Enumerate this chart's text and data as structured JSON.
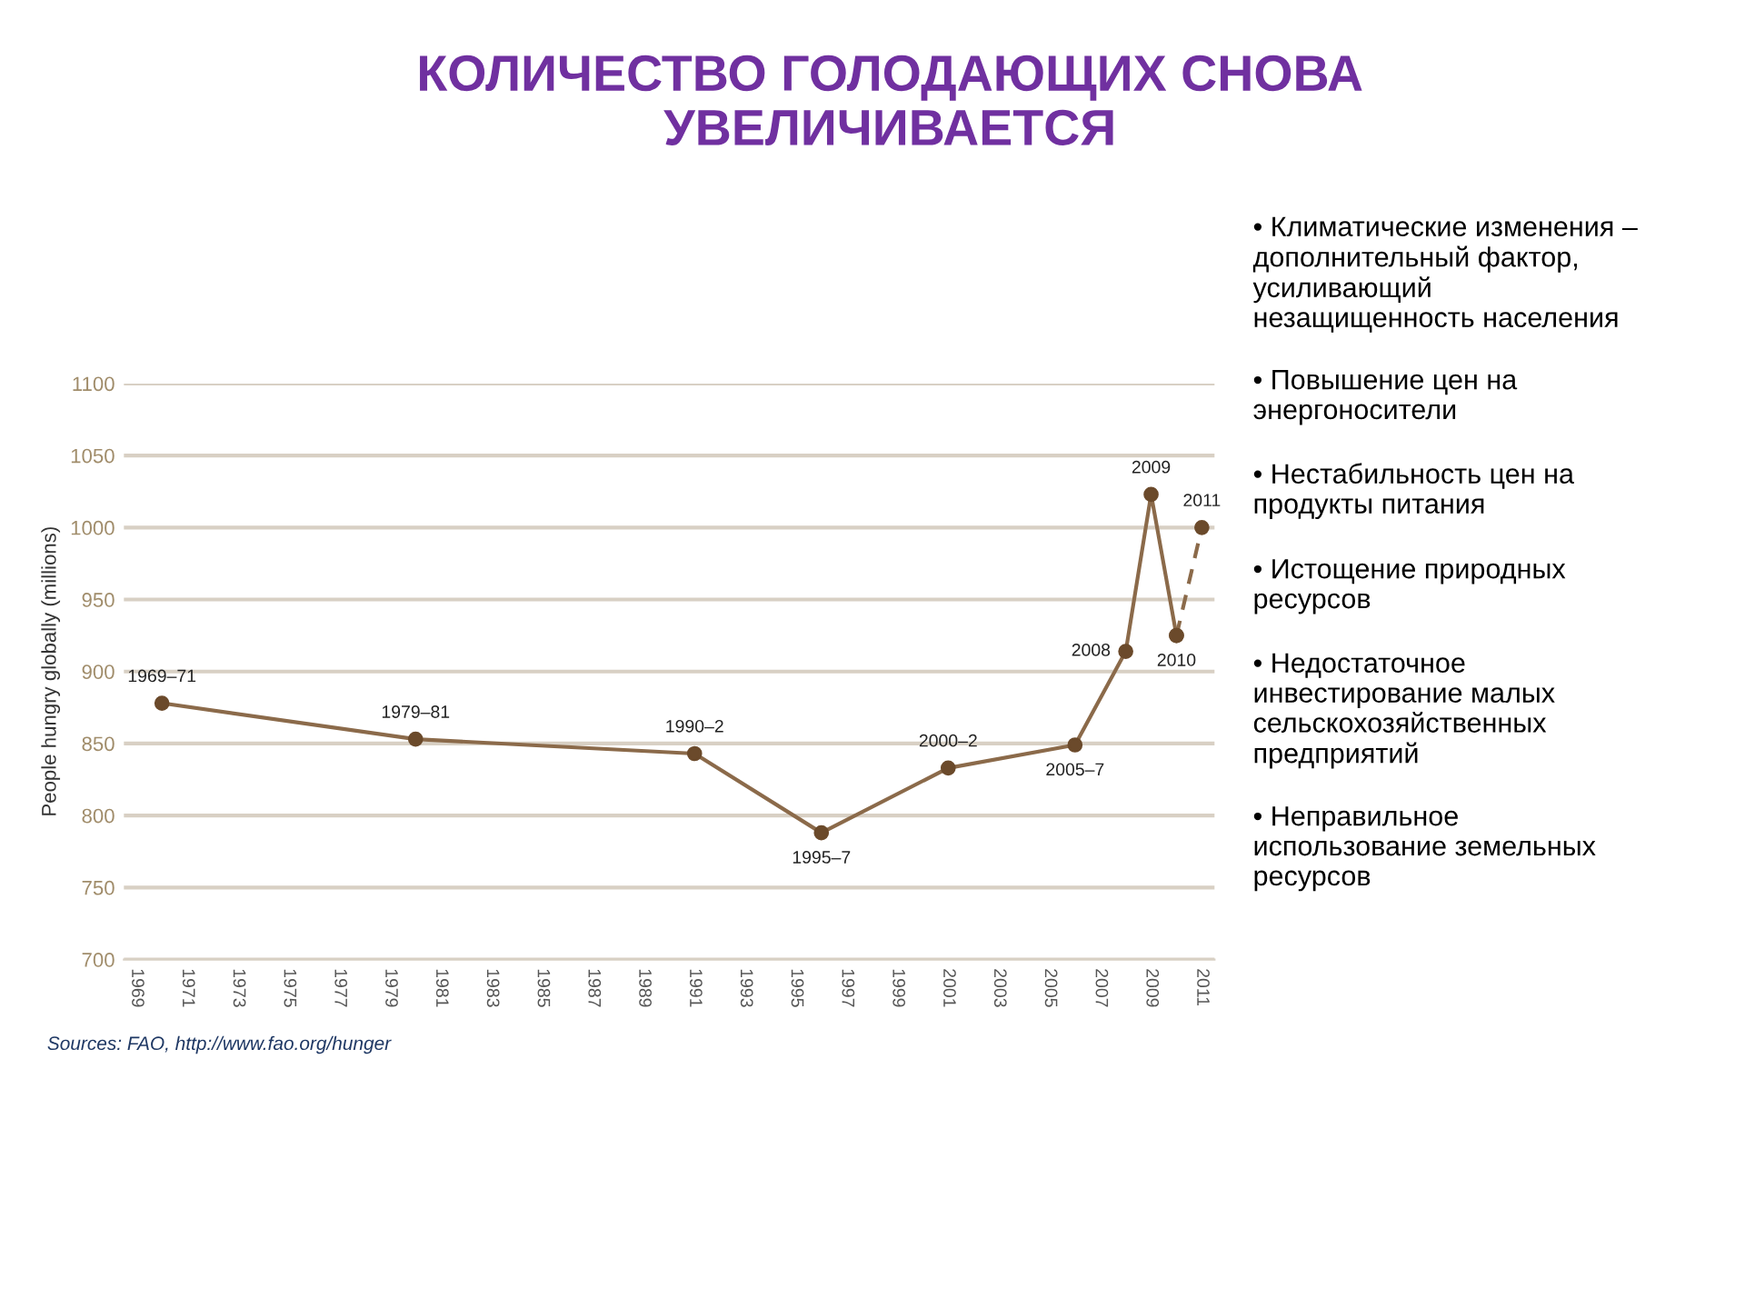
{
  "chart_data": {
    "type": "line",
    "title": "КОЛИЧЕСТВО ГОЛОДАЮЩИХ СНОВА\nУВЕЛИЧИВАЕТСЯ",
    "ylabel": "People hungry globally (millions)",
    "series": [
      {
        "color": "#8b6a4a",
        "marker": "circle",
        "line_style": "solid",
        "x": [
          1970,
          1980,
          1991,
          1996,
          2001,
          2006,
          2008,
          2009,
          2010
        ],
        "values": [
          878,
          853,
          843,
          788,
          833,
          849,
          914,
          1023,
          925
        ]
      },
      {
        "color": "#8b6a4a",
        "marker": "circle",
        "line_style": "dashed",
        "x": [
          2010,
          2011
        ],
        "values": [
          925,
          1000
        ]
      }
    ],
    "xlim": [
      1968.5,
      2011.5
    ],
    "xticks": [
      1969,
      1971,
      1973,
      1975,
      1977,
      1979,
      1981,
      1983,
      1985,
      1987,
      1989,
      1991,
      1993,
      1995,
      1997,
      1999,
      2001,
      2003,
      2005,
      2007,
      2009,
      2011
    ],
    "ylim": [
      700,
      1100
    ],
    "yticks": [
      700,
      750,
      800,
      850,
      900,
      950,
      1000,
      1050,
      1100
    ],
    "grid": "y",
    "annotations": [
      {
        "text": "1969–71",
        "x": 1970,
        "y": 878
      },
      {
        "text": "1979–81",
        "x": 1980,
        "y": 853
      },
      {
        "text": "1990–2",
        "x": 1991,
        "y": 843
      },
      {
        "text": "1995–7",
        "x": 1996,
        "y": 788
      },
      {
        "text": "2000–2",
        "x": 2001,
        "y": 833
      },
      {
        "text": "2005–7",
        "x": 2006,
        "y": 849
      },
      {
        "text": "2008",
        "x": 2008,
        "y": 914
      },
      {
        "text": "2009",
        "x": 2009,
        "y": 1023
      },
      {
        "text": "2010",
        "x": 2010,
        "y": 925
      },
      {
        "text": "2011",
        "x": 2011,
        "y": 1000
      },
      "Sources: FAO, http://www.fao.org/hunger",
      "• Климатические изменения –\nдополнительный фактор,\nусиливающий\nнезащищенность населения",
      "• Повышение цен на\nэнергоносители",
      "• Нестабильность цен на\nпродукты питания",
      "• Истощение природных\nресурсов",
      "• Недостаточное\nинвестирование малых\nсельскохозяйственных\nпредприятий",
      "• Неправильное\nиспользование земельных\nресурсов"
    ]
  }
}
